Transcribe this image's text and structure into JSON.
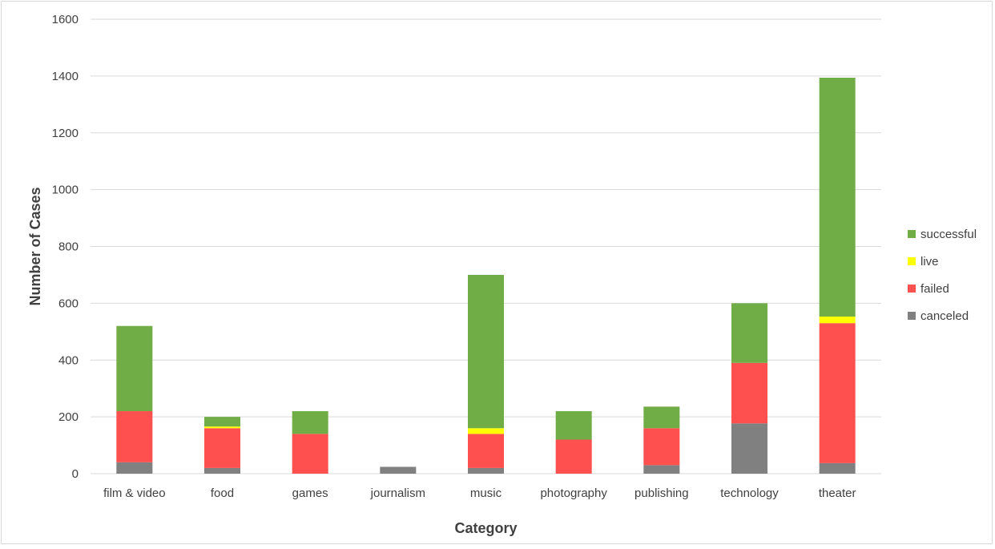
{
  "chart_data": {
    "type": "bar",
    "stacked": true,
    "categories": [
      "film & video",
      "food",
      "games",
      "journalism",
      "music",
      "photography",
      "publishing",
      "technology",
      "theater"
    ],
    "series": [
      {
        "name": "canceled",
        "color": "#808080",
        "values": [
          40,
          20,
          0,
          24,
          20,
          0,
          30,
          177,
          37
        ]
      },
      {
        "name": "failed",
        "color": "#ff5050",
        "values": [
          180,
          140,
          140,
          0,
          120,
          120,
          130,
          213,
          493
        ]
      },
      {
        "name": "live",
        "color": "#ffff00",
        "values": [
          0,
          6,
          0,
          0,
          20,
          0,
          0,
          0,
          23
        ]
      },
      {
        "name": "successful",
        "color": "#70ad47",
        "values": [
          300,
          34,
          80,
          0,
          540,
          100,
          76,
          210,
          841
        ]
      }
    ],
    "title": "",
    "xlabel": "Category",
    "ylabel": "Number of Cases",
    "ylim": [
      0,
      1600
    ],
    "yticks": [
      0,
      200,
      400,
      600,
      800,
      1000,
      1200,
      1400,
      1600
    ],
    "grid": true,
    "legend_position": "right",
    "legend_order": [
      "successful",
      "live",
      "failed",
      "canceled"
    ]
  }
}
